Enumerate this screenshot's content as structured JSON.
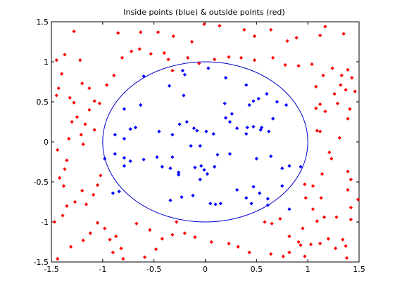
{
  "chart_data": {
    "type": "scatter",
    "title": "Inside points (blue) & outside points (red)",
    "xlabel": "",
    "ylabel": "",
    "xlim": [
      -1.5,
      1.5
    ],
    "ylim": [
      -1.5,
      1.5
    ],
    "xticks": [
      -1.5,
      -1,
      -0.5,
      0,
      0.5,
      1,
      1.5
    ],
    "yticks": [
      -1.5,
      -1,
      -0.5,
      0,
      0.5,
      1,
      1.5
    ],
    "xtick_labels": [
      "-1.5",
      "-1",
      "-0.5",
      "0",
      "0.5",
      "1",
      "1.5"
    ],
    "ytick_labels": [
      "-1.5",
      "-1",
      "-0.5",
      "0",
      "0.5",
      "1",
      "1.5"
    ],
    "grid": false,
    "legend": "none",
    "circle": {
      "center": [
        0,
        0
      ],
      "radius": 1,
      "color": "#0000cc"
    },
    "series": [
      {
        "color": "#0000ff",
        "points": [
          [
            -0.22,
            0.89
          ],
          [
            0.03,
            0.92
          ],
          [
            -0.6,
            0.82
          ],
          [
            -0.2,
            0.84
          ],
          [
            0.2,
            0.8
          ],
          [
            0.4,
            0.71
          ],
          [
            0.6,
            0.6
          ],
          [
            -0.35,
            0.7
          ],
          [
            -0.21,
            0.58
          ],
          [
            -0.63,
            0.46
          ],
          [
            -0.79,
            0.41
          ],
          [
            0.19,
            0.48
          ],
          [
            0.47,
            0.51
          ],
          [
            0.52,
            0.54
          ],
          [
            0.7,
            0.5
          ],
          [
            0.79,
            0.46
          ],
          [
            0.43,
            0.46
          ],
          [
            0.26,
            0.35
          ],
          [
            0.2,
            0.3
          ],
          [
            -0.79,
            0.04
          ],
          [
            -0.88,
            0.09
          ],
          [
            -0.73,
            0.16
          ],
          [
            -0.68,
            0.18
          ],
          [
            -0.45,
            0.13
          ],
          [
            -0.32,
            0.09
          ],
          [
            -0.25,
            0.22
          ],
          [
            -0.18,
            0.25
          ],
          [
            -0.11,
            0.17
          ],
          [
            -0.08,
            0.14
          ],
          [
            0.01,
            0.13
          ],
          [
            0.08,
            0.1
          ],
          [
            0.24,
            0.25
          ],
          [
            0.31,
            0.17
          ],
          [
            0.41,
            0.18
          ],
          [
            0.47,
            0.19
          ],
          [
            0.55,
            0.18
          ],
          [
            0.62,
            0.13
          ],
          [
            0.4,
            0.1
          ],
          [
            0.54,
            0.15
          ],
          [
            0.66,
            0.29
          ],
          [
            -0.88,
            -0.15
          ],
          [
            -0.79,
            -0.2
          ],
          [
            -0.73,
            -0.24
          ],
          [
            -0.6,
            -0.22
          ],
          [
            -0.47,
            -0.19
          ],
          [
            -0.32,
            -0.19
          ],
          [
            -0.42,
            -0.31
          ],
          [
            -0.34,
            -0.33
          ],
          [
            -0.14,
            -0.05
          ],
          [
            -0.05,
            -0.05
          ],
          [
            0.12,
            -0.16
          ],
          [
            0.24,
            -0.15
          ],
          [
            -0.26,
            -0.38
          ],
          [
            -0.26,
            -0.41
          ],
          [
            -0.1,
            -0.32
          ],
          [
            -0.04,
            -0.3
          ],
          [
            0.02,
            -0.4
          ],
          [
            -0.01,
            -0.35
          ],
          [
            -0.05,
            -0.47
          ],
          [
            0.09,
            -0.31
          ],
          [
            0.5,
            -0.21
          ],
          [
            0.64,
            -0.18
          ],
          [
            0.75,
            -0.33
          ],
          [
            0.82,
            -0.3
          ],
          [
            0.93,
            -0.31
          ],
          [
            0.75,
            -0.55
          ],
          [
            -0.23,
            -0.69
          ],
          [
            -0.12,
            -0.67
          ],
          [
            0.31,
            -0.6
          ],
          [
            0.47,
            -0.56
          ],
          [
            0.53,
            -0.64
          ],
          [
            0.61,
            -0.71
          ],
          [
            0.61,
            -0.79
          ],
          [
            -0.34,
            -0.73
          ],
          [
            0.05,
            -0.77
          ],
          [
            0.1,
            -0.78
          ],
          [
            0.15,
            -0.77
          ],
          [
            0.4,
            -0.7
          ],
          [
            0.45,
            -0.77
          ],
          [
            0.82,
            -0.84
          ],
          [
            -0.9,
            -0.64
          ],
          [
            -0.84,
            -0.62
          ],
          [
            -0.98,
            -0.21
          ],
          [
            -0.79,
            -0.3
          ]
        ]
      },
      {
        "color": "#ff0000",
        "points": [
          [
            -1.28,
            1.38
          ],
          [
            -0.85,
            1.36
          ],
          [
            -0.63,
            1.37
          ],
          [
            -0.46,
            1.37
          ],
          [
            -0.31,
            1.32
          ],
          [
            -0.13,
            1.25
          ],
          [
            -0.01,
            1.47
          ],
          [
            0.14,
            1.45
          ],
          [
            0.38,
            1.4
          ],
          [
            0.48,
            1.32
          ],
          [
            0.64,
            1.4
          ],
          [
            0.8,
            1.26
          ],
          [
            0.89,
            1.3
          ],
          [
            1.12,
            1.33
          ],
          [
            1.17,
            1.44
          ],
          [
            1.35,
            1.35
          ],
          [
            -1.37,
            1.09
          ],
          [
            -1.22,
            1.02
          ],
          [
            -1.2,
            0.73
          ],
          [
            -1.13,
            0.67
          ],
          [
            -1.08,
            0.51
          ],
          [
            -1.03,
            0.48
          ],
          [
            -0.96,
            0.71
          ],
          [
            -0.89,
            0.83
          ],
          [
            -0.81,
            1.05
          ],
          [
            -0.72,
            1.13
          ],
          [
            -0.64,
            1.16
          ],
          [
            -0.53,
            1.1
          ],
          [
            -0.4,
            1.11
          ],
          [
            -0.36,
            1.03
          ],
          [
            -0.32,
            0.89
          ],
          [
            -0.17,
            1.05
          ],
          [
            -0.06,
            0.98
          ],
          [
            0.09,
            1.03
          ],
          [
            0.23,
            1.06
          ],
          [
            0.35,
            1.05
          ],
          [
            0.48,
            1.02
          ],
          [
            0.66,
            1.05
          ],
          [
            0.78,
            0.96
          ],
          [
            0.91,
            0.95
          ],
          [
            1.04,
            0.97
          ],
          [
            1.15,
            0.83
          ],
          [
            1.24,
            0.92
          ],
          [
            1.33,
            0.83
          ],
          [
            1.39,
            0.9
          ],
          [
            1.43,
            0.8
          ],
          [
            1.46,
            0.63
          ],
          [
            1.37,
            0.65
          ],
          [
            1.32,
            0.71
          ],
          [
            1.08,
            0.69
          ],
          [
            1.12,
            0.47
          ],
          [
            1.08,
            0.42
          ],
          [
            1.17,
            0.38
          ],
          [
            1.26,
            0.6
          ],
          [
            1.29,
            0.48
          ],
          [
            1.41,
            0.41
          ],
          [
            1.39,
            0.29
          ],
          [
            1.31,
            0.05
          ],
          [
            1.09,
            0.14
          ],
          [
            1.12,
            0.13
          ],
          [
            1.21,
            -0.13
          ],
          [
            1.23,
            -0.21
          ],
          [
            1.39,
            -0.37
          ],
          [
            1.42,
            -0.47
          ],
          [
            1.39,
            -0.6
          ],
          [
            1.49,
            -0.72
          ],
          [
            1.42,
            -0.82
          ],
          [
            1.42,
            -0.97
          ],
          [
            1.28,
            -0.94
          ],
          [
            1.16,
            -0.94
          ],
          [
            1.05,
            -0.84
          ],
          [
            0.98,
            -0.7
          ],
          [
            1.05,
            -0.55
          ],
          [
            0.97,
            -0.53
          ],
          [
            1.13,
            -0.7
          ],
          [
            1.14,
            -0.4
          ],
          [
            1.09,
            -0.99
          ],
          [
            0.95,
            -1.08
          ],
          [
            0.82,
            -1.18
          ],
          [
            0.91,
            -1.25
          ],
          [
            0.93,
            -1.29
          ],
          [
            1.03,
            -1.28
          ],
          [
            1.12,
            -1.27
          ],
          [
            1.2,
            -1.21
          ],
          [
            1.34,
            -1.22
          ],
          [
            1.37,
            -1.3
          ],
          [
            1.27,
            -1.33
          ],
          [
            1.38,
            -1.45
          ],
          [
            0.97,
            -1.43
          ],
          [
            0.82,
            -1.38
          ],
          [
            0.76,
            -1.43
          ],
          [
            0.64,
            -1.4
          ],
          [
            0.43,
            -1.38
          ],
          [
            0.32,
            -1.31
          ],
          [
            0.23,
            -1.27
          ],
          [
            0.06,
            -1.25
          ],
          [
            -0.1,
            -1.19
          ],
          [
            -0.2,
            -1.14
          ],
          [
            -0.32,
            -1.16
          ],
          [
            -0.42,
            -1.21
          ],
          [
            -0.48,
            -1.34
          ],
          [
            -0.59,
            -1.44
          ],
          [
            -0.8,
            -1.46
          ],
          [
            -0.9,
            -1.38
          ],
          [
            -0.93,
            -1.22
          ],
          [
            -0.98,
            -1.08
          ],
          [
            -1.05,
            -1.01
          ],
          [
            -1.12,
            -1.14
          ],
          [
            -1.19,
            -1.23
          ],
          [
            -1.31,
            -1.31
          ],
          [
            -1.44,
            -1.46
          ],
          [
            -1.47,
            -1.0
          ],
          [
            -1.39,
            -0.92
          ],
          [
            -1.35,
            -0.8
          ],
          [
            -1.27,
            -0.75
          ],
          [
            -1.2,
            -0.61
          ],
          [
            -1.05,
            -0.54
          ],
          [
            -1.02,
            -0.42
          ],
          [
            -1.09,
            -0.66
          ],
          [
            -1.16,
            -0.78
          ],
          [
            -1.38,
            -0.55
          ],
          [
            -1.42,
            -0.45
          ],
          [
            -1.37,
            -0.34
          ],
          [
            -1.35,
            -0.23
          ],
          [
            -1.44,
            -0.1
          ],
          [
            -1.33,
            0.04
          ],
          [
            -1.21,
            0.09
          ],
          [
            -1.19,
            -0.03
          ],
          [
            -1.3,
            0.25
          ],
          [
            -1.25,
            0.31
          ],
          [
            -1.17,
            0.22
          ],
          [
            -1.08,
            0.15
          ],
          [
            -1.13,
            0.4
          ],
          [
            -1.28,
            0.49
          ],
          [
            -1.32,
            0.55
          ],
          [
            -1.45,
            0.58
          ],
          [
            -1.43,
            0.67
          ],
          [
            -1.4,
            0.85
          ],
          [
            -1.45,
            1.02
          ],
          [
            -0.67,
            -1.02
          ],
          [
            -0.54,
            -1.1
          ],
          [
            -0.28,
            -1.0
          ],
          [
            0.58,
            -1.0
          ],
          [
            0.65,
            -1.02
          ],
          [
            0.73,
            -0.96
          ],
          [
            -0.87,
            -1.18
          ],
          [
            -0.82,
            -1.33
          ]
        ]
      }
    ]
  }
}
